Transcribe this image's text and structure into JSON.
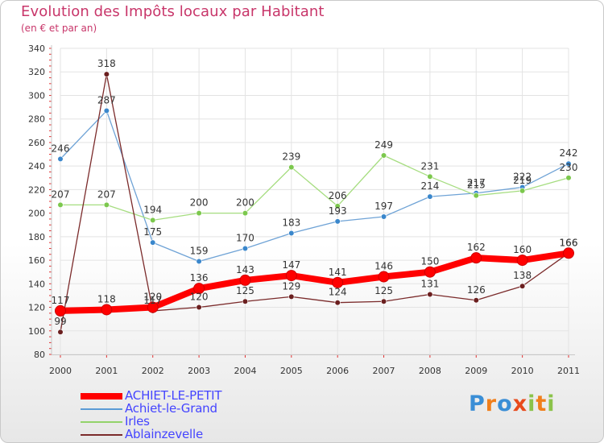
{
  "title": "Evolution des Impôts locaux par Habitant",
  "subtitle": "(en € et par an)",
  "logo": {
    "text": "Proxiti",
    "letters": [
      "P",
      "r",
      "o",
      "x",
      "i",
      "t",
      "i"
    ],
    "colors": [
      "#3a8ed6",
      "#f07f1c",
      "#3a8ed6",
      "#e84a1c",
      "#8bc34a",
      "#f07f1c",
      "#8bc34a"
    ]
  },
  "chart_data": {
    "type": "line",
    "title": "Evolution des Impôts locaux par Habitant",
    "subtitle": "(en € et par an)",
    "xlabel": "",
    "ylabel": "",
    "x": [
      "2000",
      "2001",
      "2002",
      "2003",
      "2004",
      "2005",
      "2006",
      "2007",
      "2008",
      "2009",
      "2010",
      "2011"
    ],
    "yticks": [
      80,
      100,
      120,
      140,
      160,
      180,
      200,
      220,
      240,
      260,
      280,
      300,
      320,
      340
    ],
    "ylim": [
      80,
      340
    ],
    "grid": true,
    "legend_position": "bottom-left",
    "series": [
      {
        "name": "Achiet-le-Grand",
        "color": "#5b9bd5",
        "line_color": "#6fa3d6",
        "marker": "#3a87cc",
        "values": [
          246,
          287,
          175,
          159,
          170,
          183,
          193,
          197,
          214,
          217,
          222,
          242
        ],
        "labels": [
          "246",
          "287",
          "175",
          "159",
          "170",
          "183",
          "193",
          "197",
          "214",
          "217",
          "222",
          "242"
        ]
      },
      {
        "name": "Irles",
        "color": "#93d36a",
        "line_color": "#a6dd80",
        "marker": "#7cc84d",
        "values": [
          207,
          207,
          194,
          200,
          200,
          239,
          206,
          249,
          231,
          215,
          219,
          230
        ],
        "labels": [
          "207",
          "207",
          "194",
          "200",
          "200",
          "239",
          "206",
          "249",
          "231",
          "215",
          "219",
          "230"
        ]
      },
      {
        "name": "Ablainzevelle",
        "color": "#7b2b2b",
        "line_color": "#7b2b2b",
        "marker": "#6b1f1f",
        "values": [
          99,
          318,
          117,
          120,
          125,
          129,
          124,
          125,
          131,
          126,
          138,
          166
        ],
        "labels": [
          "99",
          "318",
          "117",
          "120",
          "125",
          "129",
          "124",
          "125",
          "131",
          "126",
          "138",
          "166"
        ]
      },
      {
        "name": "ACHIET-LE-PETIT",
        "color": "#ff0000",
        "line_color": "#ff0000",
        "marker": "#ff0000",
        "values": [
          117,
          118,
          120,
          136,
          143,
          147,
          141,
          146,
          150,
          162,
          160,
          166
        ],
        "labels": [
          "117",
          "118",
          "120",
          "136",
          "143",
          "147",
          "141",
          "146",
          "150",
          "162",
          "160",
          "166"
        ]
      }
    ],
    "legend": [
      {
        "name": "ACHIET-LE-PETIT",
        "color": "#ff0000",
        "text_color": "#4444ff"
      },
      {
        "name": "Achiet-le-Grand",
        "color": "#5b9bd5",
        "text_color": "#4444ff"
      },
      {
        "name": "Irles",
        "color": "#93d36a",
        "text_color": "#4444ff"
      },
      {
        "name": "Ablainzevelle",
        "color": "#7b2b2b",
        "text_color": "#4444ff"
      }
    ]
  }
}
